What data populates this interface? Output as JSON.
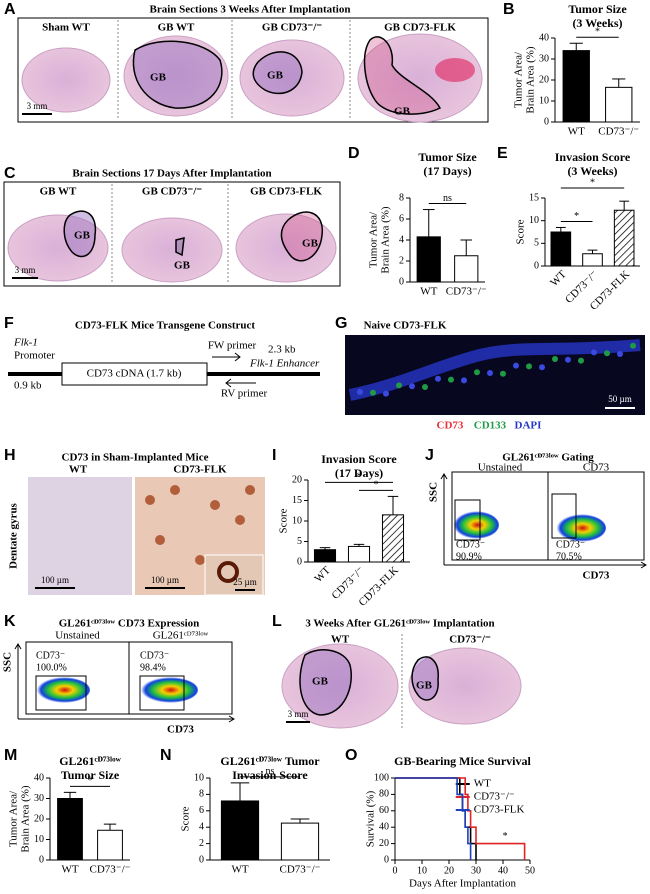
{
  "panel_letters": [
    "A",
    "B",
    "C",
    "D",
    "E",
    "F",
    "G",
    "H",
    "I",
    "J",
    "K",
    "L",
    "M",
    "N",
    "O"
  ],
  "panel_a": {
    "title": "Brain Sections 3 Weeks After Implantation",
    "labels": [
      "Sham WT",
      "GB WT",
      "GB CD73⁻/⁻",
      "GB CD73-FLK"
    ],
    "tumor_labels": [
      "GB",
      "GB",
      "GB"
    ],
    "scale_bar": "3 mm"
  },
  "panel_c": {
    "title": "Brain Sections 17 Days After Implantation",
    "labels": [
      "GB WT",
      "GB CD73⁻/⁻",
      "GB CD73-FLK"
    ],
    "tumor_labels": [
      "GB",
      "GB",
      "GB"
    ],
    "scale_bar": "3 mm"
  },
  "panel_f": {
    "title": "CD73-FLK Mice Transgene Construct",
    "promoter": [
      "Flk-1",
      "Promoter"
    ],
    "promoter_size": "0.9 kb",
    "cdna": "CD73 cDNA (1.7 kb)",
    "fw_primer": "FW primer",
    "enhancer_size": "2.3 kb",
    "enhancer": "Flk-1 Enhancer",
    "rv_primer": "RV primer"
  },
  "panel_g": {
    "title": "Naive CD73-FLK",
    "scale_bar": "50 µm",
    "stains": [
      {
        "name": "CD73",
        "color": "#e8303a"
      },
      {
        "name": "CD133",
        "color": "#1f9a45"
      },
      {
        "name": "DAPI",
        "color": "#2636c8"
      }
    ]
  },
  "panel_h": {
    "title": "CD73 in Sham-Implanted Mice",
    "labels": [
      "WT",
      "CD73-FLK"
    ],
    "region": "Dentate gyrus",
    "scale_bars": [
      "100 µm",
      "100 µm",
      "25 µm"
    ]
  },
  "panel_j": {
    "title": "GL261ᶜᴰ⁷³ˡᵒʷ Gating",
    "labels": [
      "Unstained",
      "CD73"
    ],
    "y_axis": "SSC",
    "x_axis": "CD73",
    "gates": [
      {
        "label": "CD73⁻",
        "percent": "90.9%"
      },
      {
        "label": "CD73⁻",
        "percent": "70.5%"
      }
    ]
  },
  "panel_k": {
    "title": "GL261ᶜᴰ⁷³ˡᵒʷ CD73 Expression",
    "labels": [
      "Unstained",
      "GL261ᶜᴰ⁷³ˡᵒʷ"
    ],
    "y_axis": "SSC",
    "x_axis": "CD73",
    "gates": [
      {
        "label": "CD73⁻",
        "percent": "100.0%"
      },
      {
        "label": "CD73⁻",
        "percent": "98.4%"
      }
    ]
  },
  "panel_l": {
    "title": "3 Weeks After GL261ᶜᴰ⁷³ˡᵒʷ Implantation",
    "labels": [
      "WT",
      "CD73⁻/⁻"
    ],
    "tumor_labels": [
      "GB",
      "GB"
    ],
    "scale_bar": "3 mm"
  },
  "chart_data": [
    {
      "type": "bar",
      "title": [
        "Tumor Size",
        "(3 Weeks)"
      ],
      "ylabel": [
        "Tumor Area/",
        "Brain Area (%)"
      ],
      "categories": [
        "WT",
        "CD73⁻/⁻"
      ],
      "values": [
        34,
        16.5
      ],
      "errors": [
        3.5,
        4
      ],
      "colors": [
        "#000000",
        "#ffffff"
      ],
      "hatched": [
        false,
        false
      ],
      "ylim": [
        0,
        40
      ],
      "yticks": [
        0,
        10,
        20,
        30,
        40
      ],
      "annotations": [
        {
          "text": "*",
          "between": [
            0,
            1
          ]
        }
      ]
    },
    {
      "type": "bar",
      "title": [
        "Tumor Size",
        "(17 Days)"
      ],
      "ylabel": [
        "Tumor Area/",
        "Brain Area (%)"
      ],
      "categories": [
        "WT",
        "CD73⁻/⁻"
      ],
      "values": [
        4.3,
        2.5
      ],
      "errors": [
        2.6,
        1.5
      ],
      "colors": [
        "#000000",
        "#ffffff"
      ],
      "hatched": [
        false,
        false
      ],
      "ylim": [
        0,
        8
      ],
      "yticks": [
        0,
        2,
        4,
        6,
        8
      ],
      "annotations": [
        {
          "text": "ns",
          "between": [
            0,
            1
          ]
        }
      ]
    },
    {
      "type": "bar",
      "title": [
        "Invasion Score",
        "(3 Weeks)"
      ],
      "ylabel": [
        "Score"
      ],
      "categories": [
        "WT",
        "CD73⁻/⁻",
        "CD73-FLK"
      ],
      "values": [
        7.5,
        2.7,
        12.3
      ],
      "errors": [
        1,
        0.8,
        2
      ],
      "colors": [
        "#000000",
        "#ffffff",
        "#ffffff"
      ],
      "hatched": [
        false,
        false,
        true
      ],
      "rotate_labels": true,
      "ylim": [
        0,
        15
      ],
      "yticks": [
        0,
        5,
        10,
        15
      ],
      "annotations": [
        {
          "text": "*",
          "between": [
            0,
            1
          ]
        },
        {
          "text": "*",
          "between": [
            0,
            2
          ]
        }
      ]
    },
    {
      "type": "bar",
      "title": [
        "Invasion Score",
        "(17 Days)"
      ],
      "ylabel": [
        "Score"
      ],
      "categories": [
        "WT",
        "CD73⁻/⁻",
        "CD73-FLK"
      ],
      "values": [
        3,
        3.8,
        11.5
      ],
      "errors": [
        0.5,
        0.5,
        4.5
      ],
      "colors": [
        "#000000",
        "#ffffff",
        "#ffffff"
      ],
      "hatched": [
        false,
        false,
        true
      ],
      "rotate_labels": true,
      "ylim": [
        0,
        20
      ],
      "yticks": [
        0,
        5,
        10,
        15,
        20
      ],
      "annotations": [
        {
          "text": "*",
          "between": [
            1,
            2
          ]
        },
        {
          "text": "*",
          "between": [
            0,
            2
          ]
        }
      ]
    },
    {
      "type": "bar",
      "title": [
        "GL261ᶜᴰ⁷³ˡᵒʷ",
        "Tumor Size"
      ],
      "ylabel": [
        "Tumor Area/",
        "Brain Area (%)"
      ],
      "categories": [
        "WT",
        "CD73⁻/⁻"
      ],
      "values": [
        30,
        14.5
      ],
      "errors": [
        3,
        3
      ],
      "colors": [
        "#000000",
        "#ffffff"
      ],
      "hatched": [
        false,
        false
      ],
      "ylim": [
        0,
        40
      ],
      "yticks": [
        0,
        10,
        20,
        30,
        40
      ],
      "annotations": [
        {
          "text": "*",
          "between": [
            0,
            1
          ]
        }
      ]
    },
    {
      "type": "bar",
      "title": [
        "GL261ᶜᴰ⁷³ˡᵒʷ Tumor",
        "Invasion Score"
      ],
      "ylabel": [
        "Score"
      ],
      "categories": [
        "WT",
        "CD73⁻/⁻"
      ],
      "values": [
        7.2,
        4.5
      ],
      "errors": [
        2.2,
        0.5
      ],
      "colors": [
        "#000000",
        "#ffffff"
      ],
      "hatched": [
        false,
        false
      ],
      "ylim": [
        0,
        10
      ],
      "yticks": [
        0,
        2,
        4,
        6,
        8,
        10
      ],
      "annotations": [
        {
          "text": "ns",
          "between": [
            0,
            1
          ]
        }
      ]
    },
    {
      "type": "line",
      "title": [
        "GB-Bearing Mice Survival"
      ],
      "ylabel": [
        "Survival (%)"
      ],
      "xlabel": "Days After Implantation",
      "xlim": [
        0,
        50
      ],
      "xticks": [
        0,
        10,
        20,
        30,
        40,
        50
      ],
      "ylim": [
        0,
        100
      ],
      "yticks": [
        0,
        20,
        40,
        60,
        80,
        100
      ],
      "legend": "upper right",
      "annotation": "*",
      "series": [
        {
          "name": "WT",
          "color": "#000000",
          "x": [
            0,
            24,
            24,
            25,
            25,
            26,
            26,
            28,
            28,
            30,
            30
          ],
          "values": [
            100,
            100,
            80,
            80,
            60,
            60,
            40,
            40,
            20,
            20,
            0
          ]
        },
        {
          "name": "CD73⁻/⁻",
          "color": "#e02424",
          "x": [
            0,
            26,
            26,
            27,
            27,
            28,
            28,
            30,
            30,
            48,
            48
          ],
          "values": [
            100,
            100,
            80,
            80,
            60,
            60,
            40,
            40,
            20,
            20,
            0
          ]
        },
        {
          "name": "CD73-FLK",
          "color": "#1f3fbf",
          "x": [
            0,
            23,
            23,
            25,
            25,
            26,
            26,
            27,
            27,
            28,
            28
          ],
          "values": [
            100,
            100,
            80,
            80,
            60,
            60,
            40,
            40,
            20,
            20,
            0
          ]
        }
      ]
    }
  ]
}
